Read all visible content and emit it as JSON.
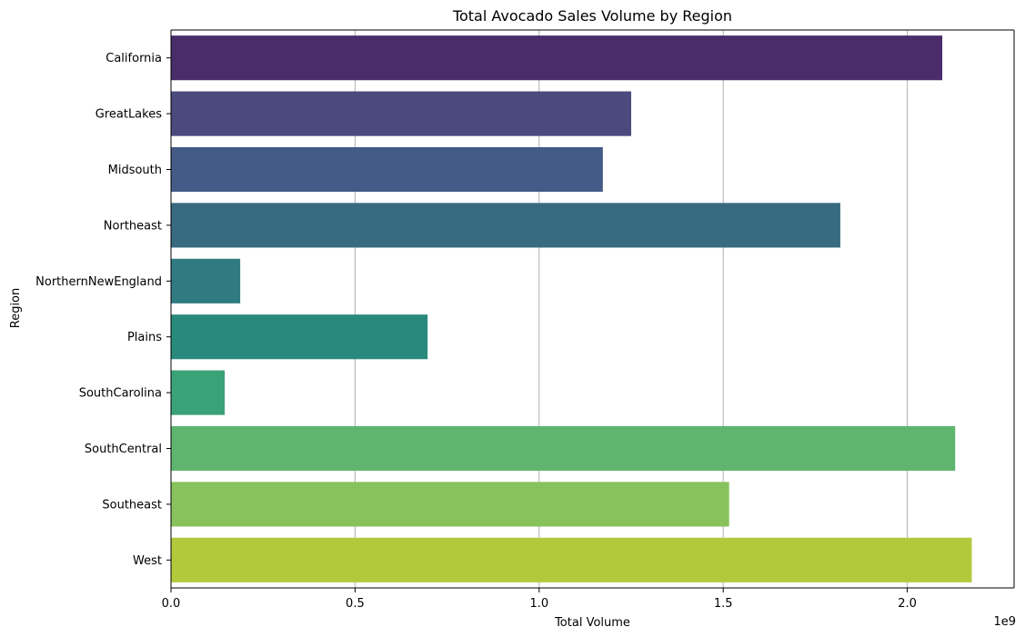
{
  "chart_data": {
    "type": "bar",
    "orientation": "horizontal",
    "title": "Total Avocado Sales Volume by Region",
    "xlabel": "Total Volume",
    "ylabel": "Region",
    "x_scale_label": "1e9",
    "grid": {
      "x": true,
      "y": false
    },
    "xlim": [
      0,
      2290000000.0
    ],
    "xticks": [
      0,
      500000000,
      1000000000,
      1500000000,
      2000000000
    ],
    "xtick_labels": [
      "0.0",
      "0.5",
      "1.0",
      "1.5",
      "2.0"
    ],
    "categories": [
      "California",
      "GreatLakes",
      "Midsouth",
      "Northeast",
      "NorthernNewEngland",
      "Plains",
      "SouthCarolina",
      "SouthCentral",
      "Southeast",
      "West"
    ],
    "values": [
      2095000000,
      1250000000,
      1173000000,
      1818000000,
      188000000,
      697000000,
      146000000,
      2130000000,
      1516000000,
      2175000000
    ],
    "colors": [
      "#4a2c6a",
      "#4b4a7f",
      "#435b86",
      "#386a80",
      "#307a81",
      "#2a897d",
      "#3ba278",
      "#5fb56e",
      "#88c25c",
      "#b2c93b"
    ]
  }
}
